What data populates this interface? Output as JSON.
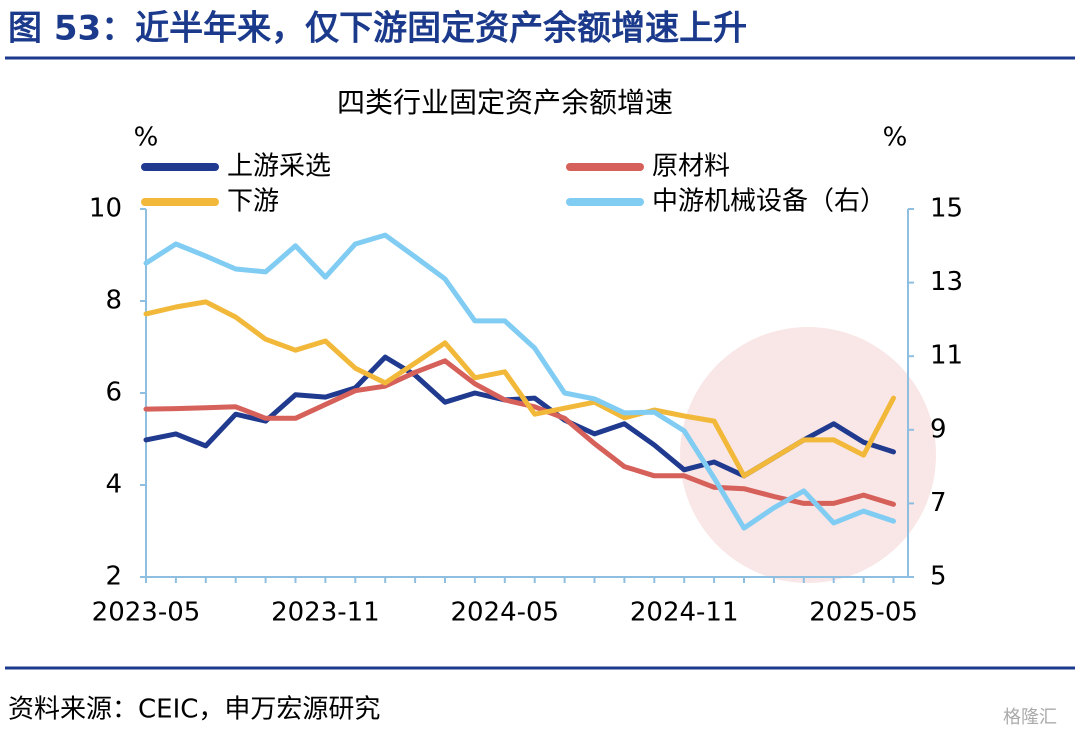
{
  "chart_data": {
    "type": "line",
    "header": "图 53：近半年来，仅下游固定资产余额增速上升",
    "title": "四类行业固定资产余额增速",
    "y_label": "%",
    "y2_label": "%",
    "source": "资料来源：CEIC，申万宏源研究",
    "watermark": "格隆汇",
    "categories": [
      "2023-05",
      null,
      null,
      null,
      null,
      null,
      "2023-11",
      null,
      null,
      null,
      null,
      null,
      "2024-05",
      null,
      null,
      null,
      null,
      null,
      "2024-11",
      null,
      null,
      null,
      null,
      null,
      "2025-05",
      null
    ],
    "ylim": [
      2,
      10
    ],
    "yticks": [
      2,
      4,
      6,
      8,
      10
    ],
    "y2lim": [
      5,
      15
    ],
    "y2ticks": [
      5,
      7,
      9,
      11,
      13,
      15
    ],
    "series": [
      {
        "name": "上游采选",
        "color": "#1f3a8f",
        "values": [
          4.98,
          5.11,
          4.85,
          5.54,
          5.39,
          5.96,
          5.91,
          6.11,
          6.78,
          6.39,
          5.8,
          6.0,
          5.85,
          5.89,
          5.41,
          5.11,
          5.33,
          4.87,
          4.33,
          4.5,
          4.2,
          4.59,
          4.98,
          5.33,
          4.93,
          4.72
        ]
      },
      {
        "name": "原材料",
        "color": "#d6605a",
        "values": [
          5.65,
          5.66,
          5.68,
          5.7,
          5.45,
          5.45,
          5.75,
          6.05,
          6.15,
          6.45,
          6.7,
          6.2,
          5.85,
          5.7,
          5.45,
          4.9,
          4.4,
          4.2,
          4.2,
          3.95,
          3.92,
          3.75,
          3.6,
          3.6,
          3.78,
          3.58
        ]
      },
      {
        "name": "下游",
        "color": "#f2b83a",
        "values": [
          7.72,
          7.87,
          7.98,
          7.65,
          7.17,
          6.93,
          7.13,
          6.54,
          6.22,
          6.65,
          7.09,
          6.33,
          6.46,
          5.54,
          5.67,
          5.8,
          5.46,
          5.63,
          5.5,
          5.39,
          4.2,
          4.59,
          4.98,
          4.98,
          4.65,
          5.89
        ]
      },
      {
        "name": "中游机械设备（右）",
        "color": "#80ccf3",
        "axis": "y2",
        "values": [
          13.53,
          14.05,
          13.72,
          13.37,
          13.29,
          14.0,
          13.15,
          14.05,
          14.29,
          13.7,
          13.1,
          11.96,
          11.96,
          11.22,
          10.0,
          9.84,
          9.46,
          9.48,
          8.97,
          7.69,
          6.33,
          6.88,
          7.34,
          6.47,
          6.79,
          6.52
        ]
      }
    ]
  }
}
